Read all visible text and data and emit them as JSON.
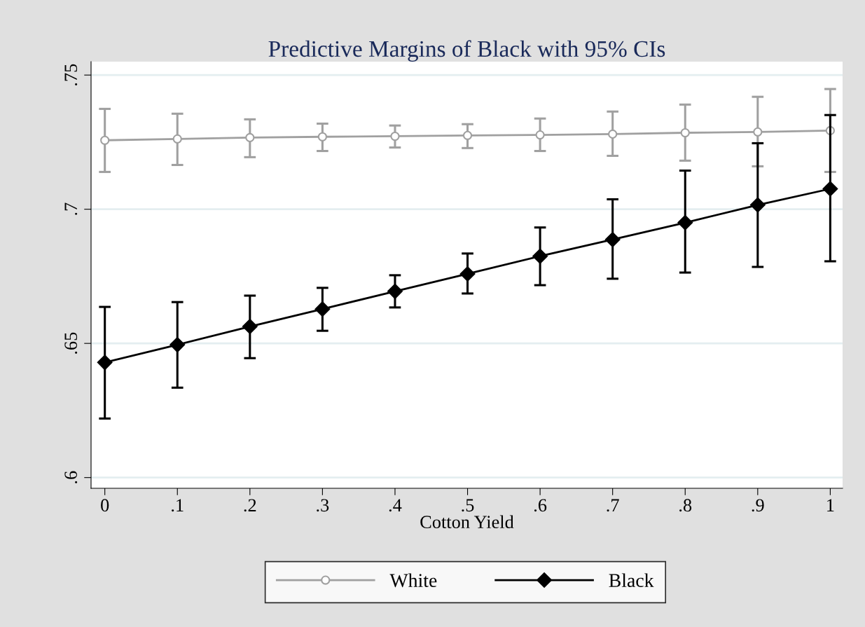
{
  "chart_data": {
    "type": "line",
    "title": "Predictive Margins of Black with 95% CIs",
    "xlabel": "Cotton Yield",
    "x": [
      0,
      0.1,
      0.2,
      0.3,
      0.4,
      0.5,
      0.6,
      0.7,
      0.8,
      0.9,
      1
    ],
    "series": [
      {
        "name": "White",
        "color": "#a0a0a0",
        "marker": "circle",
        "values": [
          0.7257,
          0.7262,
          0.7267,
          0.727,
          0.7272,
          0.7275,
          0.7277,
          0.728,
          0.7285,
          0.7288,
          0.7293
        ],
        "errors": [
          [
            0.7139,
            0.7374
          ],
          [
            0.7165,
            0.7356
          ],
          [
            0.7194,
            0.7335
          ],
          [
            0.7217,
            0.7319
          ],
          [
            0.723,
            0.7312
          ],
          [
            0.7228,
            0.7317
          ],
          [
            0.7217,
            0.7338
          ],
          [
            0.7199,
            0.7364
          ],
          [
            0.7181,
            0.739
          ],
          [
            0.716,
            0.7419
          ],
          [
            0.7139,
            0.7448
          ]
        ]
      },
      {
        "name": "Black",
        "color": "#000000",
        "marker": "diamond",
        "values": [
          0.6429,
          0.6495,
          0.6563,
          0.6628,
          0.6694,
          0.6759,
          0.6825,
          0.6887,
          0.695,
          0.7016,
          0.7076
        ],
        "errors": [
          [
            0.622,
            0.6636
          ],
          [
            0.6335,
            0.6654
          ],
          [
            0.6445,
            0.6678
          ],
          [
            0.6547,
            0.6707
          ],
          [
            0.6634,
            0.6754
          ],
          [
            0.6686,
            0.6835
          ],
          [
            0.6717,
            0.6932
          ],
          [
            0.6741,
            0.7037
          ],
          [
            0.6764,
            0.7144
          ],
          [
            0.6785,
            0.7246
          ],
          [
            0.6806,
            0.7351
          ]
        ]
      }
    ],
    "xlim": [
      -0.019,
      1.017
    ],
    "ylim": [
      0.596,
      0.755
    ],
    "xticks": [
      0,
      {
        "value": 0.1,
        "label": ".1"
      },
      {
        "value": 0.2,
        "label": ".2"
      },
      {
        "value": 0.3,
        "label": ".3"
      },
      {
        "value": 0.4,
        "label": ".4"
      },
      {
        "value": 0.5,
        "label": ".5"
      },
      {
        "value": 0.6,
        "label": ".6"
      },
      {
        "value": 0.7,
        "label": ".7"
      },
      {
        "value": 0.8,
        "label": ".8"
      },
      {
        "value": 0.9,
        "label": ".9"
      },
      1
    ],
    "yticks": [
      {
        "value": 0.6,
        "label": ".6"
      },
      {
        "value": 0.65,
        "label": ".65"
      },
      {
        "value": 0.7,
        "label": ".7"
      },
      {
        "value": 0.75,
        "label": ".75"
      }
    ],
    "grid": "y",
    "legend": "bottom",
    "line_style": "solid"
  }
}
